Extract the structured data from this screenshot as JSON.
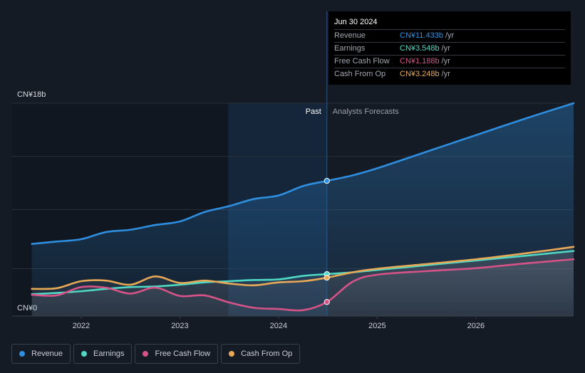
{
  "chart_data": {
    "type": "line",
    "y_axis": {
      "top_label": "CN¥18b",
      "bottom_label": "CN¥0",
      "ylim": [
        0,
        18
      ]
    },
    "x_axis": {
      "ticks": [
        "2022",
        "2023",
        "2024",
        "2025",
        "2026"
      ],
      "xlim": [
        2021.3,
        2026.99
      ]
    },
    "past_label": "Past",
    "forecast_label": "Analysts Forecasts",
    "divider_x": 2024.49,
    "highlight_start_x": 2023.49,
    "series": [
      {
        "name": "Revenue",
        "color": "#2e8fe0",
        "points": [
          [
            2021.5,
            6.1
          ],
          [
            2021.75,
            6.3
          ],
          [
            2022.0,
            6.5
          ],
          [
            2022.25,
            7.1
          ],
          [
            2022.5,
            7.3
          ],
          [
            2022.75,
            7.7
          ],
          [
            2023.0,
            8.0
          ],
          [
            2023.25,
            8.8
          ],
          [
            2023.5,
            9.3
          ],
          [
            2023.75,
            9.9
          ],
          [
            2024.0,
            10.2
          ],
          [
            2024.25,
            11.0
          ],
          [
            2024.49,
            11.433
          ],
          [
            2024.75,
            11.9
          ],
          [
            2025.0,
            12.5
          ],
          [
            2025.5,
            13.9
          ],
          [
            2026.0,
            15.3
          ],
          [
            2026.5,
            16.7
          ],
          [
            2026.99,
            18.0
          ]
        ]
      },
      {
        "name": "Earnings",
        "color": "#4fd8c4",
        "points": [
          [
            2021.5,
            1.85
          ],
          [
            2021.75,
            1.95
          ],
          [
            2022.0,
            2.1
          ],
          [
            2022.25,
            2.3
          ],
          [
            2022.5,
            2.45
          ],
          [
            2022.75,
            2.5
          ],
          [
            2023.0,
            2.65
          ],
          [
            2023.25,
            2.85
          ],
          [
            2023.5,
            2.95
          ],
          [
            2023.75,
            3.05
          ],
          [
            2024.0,
            3.1
          ],
          [
            2024.25,
            3.4
          ],
          [
            2024.49,
            3.548
          ],
          [
            2024.75,
            3.7
          ],
          [
            2025.0,
            3.9
          ],
          [
            2025.5,
            4.3
          ],
          [
            2026.0,
            4.7
          ],
          [
            2026.5,
            5.1
          ],
          [
            2026.99,
            5.5
          ]
        ]
      },
      {
        "name": "Free Cash Flow",
        "color": "#d65387",
        "points": [
          [
            2021.5,
            1.8
          ],
          [
            2021.75,
            1.75
          ],
          [
            2022.0,
            2.45
          ],
          [
            2022.25,
            2.4
          ],
          [
            2022.5,
            1.9
          ],
          [
            2022.75,
            2.4
          ],
          [
            2023.0,
            1.7
          ],
          [
            2023.25,
            1.75
          ],
          [
            2023.5,
            1.15
          ],
          [
            2023.75,
            0.7
          ],
          [
            2024.0,
            0.6
          ],
          [
            2024.25,
            0.5
          ],
          [
            2024.49,
            1.188
          ],
          [
            2024.75,
            2.9
          ],
          [
            2025.0,
            3.5
          ],
          [
            2025.5,
            3.8
          ],
          [
            2026.0,
            4.05
          ],
          [
            2026.5,
            4.45
          ],
          [
            2026.99,
            4.8
          ]
        ]
      },
      {
        "name": "Cash From Op",
        "color": "#e8a957",
        "points": [
          [
            2021.5,
            2.3
          ],
          [
            2021.75,
            2.35
          ],
          [
            2022.0,
            2.95
          ],
          [
            2022.25,
            3.0
          ],
          [
            2022.5,
            2.65
          ],
          [
            2022.75,
            3.35
          ],
          [
            2023.0,
            2.8
          ],
          [
            2023.25,
            3.0
          ],
          [
            2023.5,
            2.75
          ],
          [
            2023.75,
            2.6
          ],
          [
            2024.0,
            2.85
          ],
          [
            2024.25,
            2.95
          ],
          [
            2024.49,
            3.248
          ],
          [
            2024.75,
            3.7
          ],
          [
            2025.0,
            4.0
          ],
          [
            2025.5,
            4.4
          ],
          [
            2026.0,
            4.8
          ],
          [
            2026.5,
            5.3
          ],
          [
            2026.99,
            5.85
          ]
        ]
      }
    ]
  },
  "tooltip": {
    "date": "Jun 30 2024",
    "rows": [
      {
        "label": "Revenue",
        "value": "CN¥11.433b",
        "unit": "/yr",
        "color": "#2e8fe0"
      },
      {
        "label": "Earnings",
        "value": "CN¥3.548b",
        "unit": "/yr",
        "color": "#4fd8c4"
      },
      {
        "label": "Free Cash Flow",
        "value": "CN¥1.188b",
        "unit": "/yr",
        "color": "#d65387"
      },
      {
        "label": "Cash From Op",
        "value": "CN¥3.248b",
        "unit": "/yr",
        "color": "#e8a957"
      }
    ]
  },
  "legend": [
    {
      "label": "Revenue",
      "color": "#2e8fe0"
    },
    {
      "label": "Earnings",
      "color": "#4fd8c4"
    },
    {
      "label": "Free Cash Flow",
      "color": "#d65387"
    },
    {
      "label": "Cash From Op",
      "color": "#e8a957"
    }
  ]
}
